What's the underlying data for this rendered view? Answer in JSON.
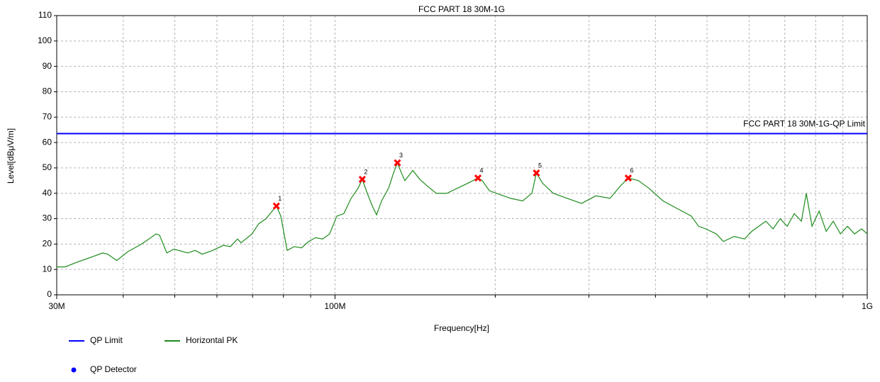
{
  "chart_data": {
    "type": "line",
    "title": "FCC PART 18  30M-1G",
    "title_color": "#ff0000",
    "limit_label": "FCC PART 18  30M-1G-QP Limit",
    "limit_label_color": "#0000ff",
    "x_label": "Frequency[Hz]",
    "y_label": "Level[dBμV/m]",
    "xlog": true,
    "grid": true,
    "xlim": [
      30000000,
      1000000000
    ],
    "xticks": [
      {
        "value": 30000000,
        "label": "30M"
      },
      {
        "value": 100000000,
        "label": "100M"
      },
      {
        "value": 1000000000,
        "label": "1G"
      }
    ],
    "xminor": [
      40000000,
      50000000,
      60000000,
      70000000,
      80000000,
      90000000,
      200000000,
      300000000,
      400000000,
      500000000,
      600000000,
      700000000,
      800000000,
      900000000
    ],
    "ylim": [
      0,
      110
    ],
    "yticks": [
      0,
      10,
      20,
      30,
      40,
      50,
      60,
      70,
      80,
      90,
      100,
      110
    ],
    "series": [
      {
        "name": "QP Limit",
        "color": "#0000ff",
        "mode": "line",
        "x": [
          30000000,
          1000000000
        ],
        "values": [
          63.5,
          63.5
        ]
      },
      {
        "name": "Horizontal PK",
        "color": "#1e8c1e",
        "mode": "line",
        "x": [
          30000000,
          31100000,
          32900000,
          35000000,
          36600000,
          37400000,
          38900000,
          40800000,
          43300000,
          44700000,
          46100000,
          46800000,
          48300000,
          49800000,
          52900000,
          54600000,
          56300000,
          58900000,
          61700000,
          63600000,
          65600000,
          66600000,
          69800000,
          71900000,
          74200000,
          77600000,
          79100000,
          81300000,
          83800000,
          86500000,
          89200000,
          91900000,
          94800000,
          97700000,
          100800000,
          103900000,
          107200000,
          110500000,
          112500000,
          115000000,
          117500000,
          119700000,
          122300000,
          126100000,
          128800000,
          131000000,
          133300000,
          135300000,
          140000000,
          144300000,
          148800000,
          154900000,
          162200000,
          169800000,
          177800000,
          185600000,
          189100000,
          195000000,
          204200000,
          213800000,
          225200000,
          234400000,
          239000000,
          245400000,
          257000000,
          273200000,
          290600000,
          309000000,
          328500000,
          344100000,
          355600000,
          371400000,
          388800000,
          413400000,
          439500000,
          467400000,
          482100000,
          497100000,
          520500000,
          536700000,
          561900000,
          588300000,
          606600000,
          625500000,
          645000000,
          665400000,
          686100000,
          707400000,
          729300000,
          752100000,
          768300000,
          787500000,
          812100000,
          837300000,
          863400000,
          890400000,
          918000000,
          946500000,
          975900000,
          1000000000
        ],
        "values": [
          11,
          11,
          13,
          15,
          16.5,
          16,
          13.5,
          17,
          20,
          22,
          24,
          23.5,
          16.5,
          18,
          16.5,
          17.5,
          16,
          17.5,
          19.5,
          19,
          22,
          20.5,
          24,
          28,
          30,
          35,
          31,
          17.5,
          19,
          18.5,
          21,
          22.5,
          22,
          24,
          31,
          32,
          38,
          42,
          45.5,
          40,
          35,
          31.5,
          37,
          42,
          48,
          52,
          48,
          45,
          49,
          45.5,
          43,
          40,
          40,
          42,
          44,
          46,
          45,
          41,
          39.5,
          38,
          37,
          40,
          48,
          44,
          40,
          38,
          36,
          39,
          38,
          43,
          46,
          45,
          42,
          37,
          34,
          31,
          27,
          26,
          24,
          21,
          23,
          22,
          25,
          27,
          29,
          26,
          30,
          27,
          32,
          29,
          40,
          27,
          33,
          25,
          29,
          24,
          27,
          24,
          26,
          24
        ]
      },
      {
        "name": "QP Detector",
        "color": "#0000ff",
        "mode": "points",
        "x": [],
        "values": []
      }
    ],
    "markers": {
      "color": "#ff0000",
      "labels": [
        "1",
        "2",
        "3",
        "4",
        "5",
        "6"
      ],
      "x": [
        77600000,
        112500000,
        131000000,
        185600000,
        239000000,
        355600000
      ],
      "values": [
        35,
        45.5,
        52,
        46,
        48,
        46
      ]
    }
  }
}
